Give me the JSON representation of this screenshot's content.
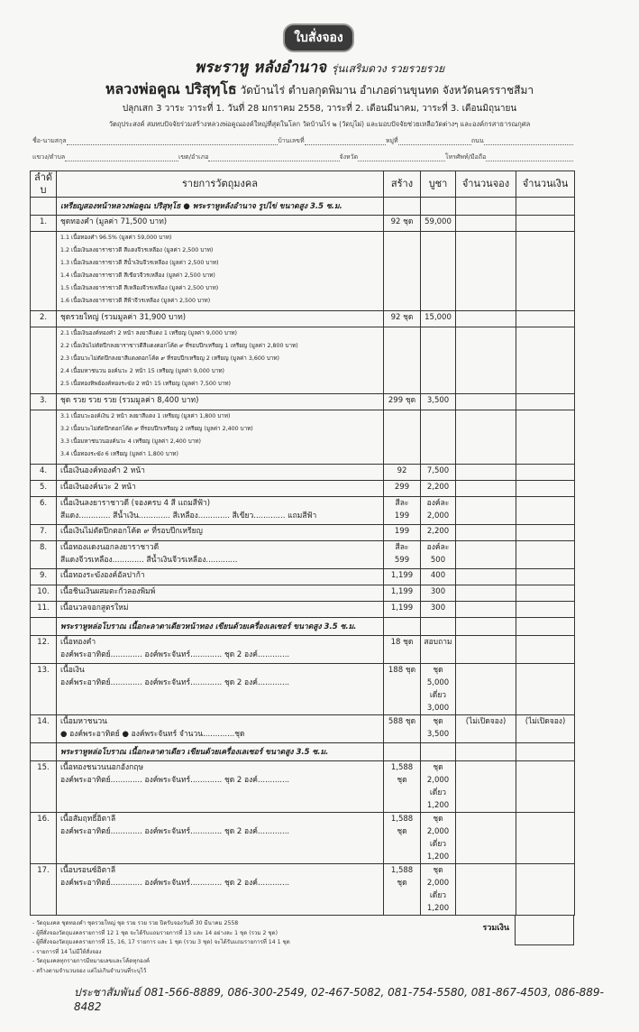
{
  "header": {
    "badge": "ใบสั่งจอง",
    "title_main": "พระราหู หลังอำนาจ",
    "title_edition": "รุ่นเสริมดวง รวยรวยรวย",
    "monk": "หลวงพ่อคูณ ปริสุทฺโธ",
    "temple": "วัดบ้านไร่ ตำบลกุดพิมาน อำเภอด่านขุนทด จังหวัดนครราชสีมา",
    "ceremony": "ปลุกเสก 3 วาระ วาระที่ 1. วันที่ 28 มกราคม 2558, วาระที่ 2. เดือนมีนาคม, วาระที่ 3. เดือนมิถุนายน",
    "purpose": "วัตถุประสงค์ สมทบปัจจัยร่วมสร้างหลวงพ่อคูณองค์ใหญ่ที่สุดในโลก วัดบ้านไร่ ๒ (วัดบุไผ่) และมอบปัจจัยช่วยเหลือวัดต่างๆ และองค์กรสาธารณกุศล"
  },
  "form": {
    "name": "ชื่อ-นามสกุล",
    "house_no": "บ้านเลขที่",
    "moo": "หมู่ที่",
    "road": "ถนน",
    "subdistrict": "แขวง/ตำบล",
    "district": "เขต/อำเภอ",
    "province": "จังหวัด",
    "phone": "โทรศัพท์/มือถือ"
  },
  "table": {
    "columns": [
      "ลำดับ",
      "รายการวัตถุมงคล",
      "สร้าง",
      "บูชา",
      "จำนวนจอง",
      "จำนวนเงิน"
    ],
    "rows": [
      {
        "type": "banner",
        "lines": [
          "เหรียญสองหน้าหลวงพ่อคูณ ปริสุทฺโธ ● พระราหูหลังอำนาจ รูปไข่ ขนาดสูง 3.5 ซ.ม."
        ]
      },
      {
        "type": "main",
        "no": "1.",
        "lines": [
          "ชุดทองคำ (มูลค่า 71,500 บาท)"
        ],
        "create": [
          "92 ชุด"
        ],
        "price": [
          "59,000"
        ]
      },
      {
        "type": "sub",
        "lines": [
          "1.1   เนื้อทองคำ 96.5% (มูลค่า 59,000 บาท)",
          "1.2   เนื้อเงินลงยาราชาวดี สีแดงจีวรเหลือง (มูลค่า 2,500 บาท)",
          "1.3   เนื้อเงินลงยาราชาวดี สีน้ำเงินจีวรเหลือง (มูลค่า 2,500 บาท)",
          "1.4   เนื้อเงินลงยาราชาวดี สีเขียวจีวรเหลือง (มูลค่า 2,500 บาท)",
          "1.5   เนื้อเงินลงยาราชาวดี สีเหลืองจีวรเหลือง (มูลค่า 2,500 บาท)",
          "1.6   เนื้อเงินลงยาราชาวดี สีฟ้าจีวรเหลือง (มูลค่า 2,500 บาท)"
        ]
      },
      {
        "type": "main",
        "no": "2.",
        "lines": [
          "ชุดรวยใหญ่ (รวมมูลค่า 31,900 บาท)"
        ],
        "create": [
          "92 ชุด"
        ],
        "price": [
          "15,000"
        ]
      },
      {
        "type": "sub",
        "lines": [
          "2.1   เนื้อเงินองค์ทองคำ 2 หน้า ลงยาสีแดง 1 เหรียญ (มูลค่า 9,000 บาท)",
          "2.2   เนื้อเงินไม่ตัดปีกลงยาราชาวดีสีแดงตอกโค้ด ๙ ที่รอบปีกเหรียญ 1 เหรียญ (มูลค่า 2,800 บาท)",
          "2.3   เนื้อนวะไม่ตัดปีกลงยาสีแดงตอกโค้ด ๙ ที่รอบปีกเหรียญ 2 เหรียญ (มูลค่า 3,600 บาท)",
          "2.4   เนื้อมหาชนวน องค์นวะ 2 หน้า 15 เหรียญ (มูลค่า 9,000 บาท)",
          "2.5   เนื้อทองทิพย์องค์ทองระฆัง 2 หน้า 15 เหรียญ (มูลค่า 7,500 บาท)"
        ]
      },
      {
        "type": "main",
        "no": "3.",
        "lines": [
          "ชุด รวย รวย รวย (รวมมูลค่า 8,400 บาท)"
        ],
        "create": [
          "299 ชุด"
        ],
        "price": [
          "3,500"
        ]
      },
      {
        "type": "sub",
        "lines": [
          "3.1   เนื้อนวะองค์เงิน 2 หน้า ลงยาสีแดง 1 เหรียญ (มูลค่า 1,800 บาท)",
          "3.2   เนื้อนวะไม่ตัดปีกตอกโค้ด ๙ ที่รอบปีกเหรียญ 2 เหรียญ (มูลค่า 2,400 บาท)",
          "3.3   เนื้อมหาชนวนองค์นวะ 4 เหรียญ (มูลค่า 2,400 บาท)",
          "3.4   เนื้อทองระฆัง 6 เหรียญ (มูลค่า 1,800 บาท)"
        ]
      },
      {
        "type": "main",
        "no": "4.",
        "lines": [
          "เนื้อเงินองค์ทองคำ 2 หน้า"
        ],
        "create": [
          "92"
        ],
        "price": [
          "7,500"
        ]
      },
      {
        "type": "main",
        "no": "5.",
        "lines": [
          "เนื้อเงินองค์นวะ 2 หน้า"
        ],
        "create": [
          "299"
        ],
        "price": [
          "2,200"
        ]
      },
      {
        "type": "main",
        "no": "6.",
        "lines": [
          "เนื้อเงินลงยาราชาวดี (จองครบ 4 สี แถมสีฟ้า)",
          "สีแดง.............  สีน้ำเงิน.............  สีเหลือง.............  สีเขียว.............  แถมสีฟ้า"
        ],
        "create": [
          "สีละ",
          "199"
        ],
        "price": [
          "องค์ละ",
          "2,000"
        ]
      },
      {
        "type": "main",
        "no": "7.",
        "lines": [
          "เนื้อเงินไม่ตัดปีกตอกโค้ด ๙ ที่รอบปีกเหรียญ"
        ],
        "create": [
          "199"
        ],
        "price": [
          "2,200"
        ]
      },
      {
        "type": "main",
        "no": "8.",
        "lines": [
          "เนื้อทองแดงนอกลงยาราชาวดี",
          "สีแดงจีวรเหลือง.............        สีน้ำเงินจีวรเหลือง............."
        ],
        "create": [
          "สีละ",
          "599"
        ],
        "price": [
          "องค์ละ",
          "500"
        ]
      },
      {
        "type": "main",
        "no": "9.",
        "lines": [
          "เนื้อทองระฆังองค์อัลปาก้า"
        ],
        "create": [
          "1,199"
        ],
        "price": [
          "400"
        ]
      },
      {
        "type": "main",
        "no": "10.",
        "lines": [
          "เนื้อชินเงินผสมตะกั่วลองพิมพ์"
        ],
        "create": [
          "1,199"
        ],
        "price": [
          "300"
        ]
      },
      {
        "type": "main",
        "no": "11.",
        "lines": [
          "เนื้อนวลจอกสูตรใหม่"
        ],
        "create": [
          "1,199"
        ],
        "price": [
          "300"
        ]
      },
      {
        "type": "banner",
        "lines": [
          "พระราหูหล่อโบราณ เนื้อกะลาตาเดียวหน้าทอง เขียนด้วยเครื่องเลเซอร์ ขนาดสูง 3.5 ซ.ม."
        ]
      },
      {
        "type": "main",
        "no": "12.",
        "lines": [
          "เนื้อทองคำ",
          "องค์พระอาทิตย์.............   องค์พระจันทร์.............   ชุด 2 องค์............."
        ],
        "create": [
          "18 ชุด"
        ],
        "price": [
          "สอบถาม"
        ]
      },
      {
        "type": "main",
        "no": "13.",
        "lines": [
          "เนื้อเงิน",
          "องค์พระอาทิตย์.............   องค์พระจันทร์.............   ชุด 2 องค์............."
        ],
        "create": [
          "188 ชุด"
        ],
        "price": [
          "ชุด 5,000",
          "เดี่ยว 3,000"
        ]
      },
      {
        "type": "main",
        "no": "14.",
        "lines": [
          "เนื้อมหาชนวน",
          "● องค์พระอาทิตย์  ● องค์พระจันทร์  จำนวน.............ชุด"
        ],
        "create": [
          "588 ชุด"
        ],
        "price": [
          "ชุด 3,500"
        ],
        "reserve": "(ไม่เปิดจอง)",
        "amount": "(ไม่เปิดจอง)"
      },
      {
        "type": "banner",
        "lines": [
          "พระราหูหล่อโบราณ เนื้อกะลาตาเดียว เขียนด้วยเครื่องเลเซอร์ ขนาดสูง 3.5 ซ.ม."
        ]
      },
      {
        "type": "main",
        "no": "15.",
        "lines": [
          "เนื้อทองชนวนนอกอังกฤษ",
          "องค์พระอาทิตย์.............   องค์พระจันทร์.............   ชุด 2 องค์............."
        ],
        "create": [
          "1,588 ชุด"
        ],
        "price": [
          "ชุด 2,000",
          "เดี่ยว 1,200"
        ]
      },
      {
        "type": "main",
        "no": "16.",
        "lines": [
          "เนื้อสัมฤทธิ์อิตาลี",
          "องค์พระอาทิตย์.............   องค์พระจันทร์.............   ชุด 2 องค์............."
        ],
        "create": [
          "1,588 ชุด"
        ],
        "price": [
          "ชุด 2,000",
          "เดี่ยว 1,200"
        ]
      },
      {
        "type": "main",
        "no": "17.",
        "lines": [
          "เนื้อบรอนซ์อิตาลี",
          "องค์พระอาทิตย์.............   องค์พระจันทร์.............   ชุด 2 องค์............."
        ],
        "create": [
          "1,588 ชุด"
        ],
        "price": [
          "ชุด 2,000",
          "เดี่ยว 1,200"
        ]
      }
    ],
    "total_label": "รวมเงิน"
  },
  "notes": [
    "วัตถุมงคล ชุดทองคำ ชุดรวยใหญ่ ชุด รวย รวย รวย ปิดรับจองวันที่ 30 มีนาคม 2558",
    "ผู้ที่สั่งจองวัตถุมงคลรายการที่ 12 1 ชุด จะได้รับแถมรายการที่ 13 และ 14 อย่างละ 1 ชุด (รวม 2 ชุด)",
    "ผู้ที่สั่งจองวัตถุมงคลรายการที่ 15, 16, 17 รายการ และ 1 ชุด (รวม 3 ชุด) จะได้รับแถมรายการที่ 14 1 ชุด",
    "รายการที่ 14 ไม่มีให้สั่งจอง",
    "วัตถุมงคลทุกรายการมีหมายเลขและโค้ดทุกองค์",
    "สร้างตามจำนวนจอง แต่ไม่เกินจำนวนที่ระบุไว้"
  ],
  "footer": "ประชาสัมพันธ์ 081-566-8889, 086-300-2549, 02-467-5082, 081-754-5580, 081-867-4503, 086-889-8482"
}
